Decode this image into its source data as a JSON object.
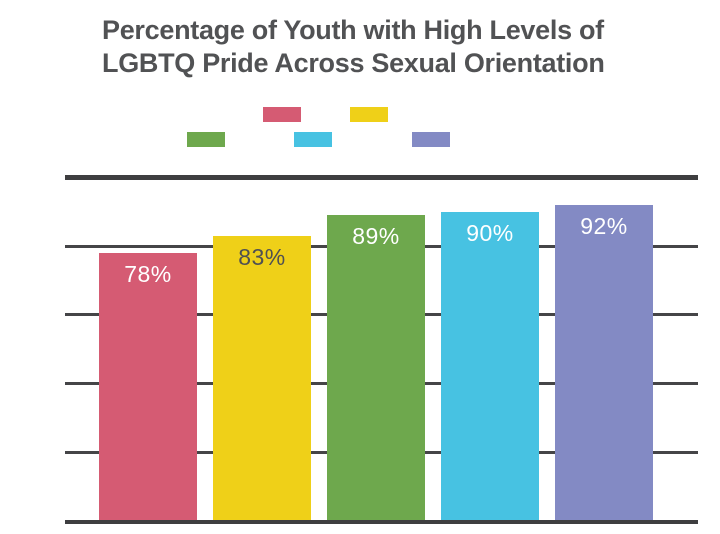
{
  "title": {
    "full": "Percentage of Youth with High Levels of LGBTQ Pride Across Sexual Orientation"
  },
  "chart_data": {
    "type": "bar",
    "title": "Percentage of Youth with High Levels of LGBTQ Pride Across Sexual Orientation",
    "title_lines": [
      "Percentage of Youth with High Levels of",
      "LGBTQ Pride Across Sexual Orientation"
    ],
    "values": [
      78,
      83,
      89,
      90,
      92
    ],
    "data_labels": [
      "78%",
      "83%",
      "89%",
      "90%",
      "92%"
    ],
    "bar_colors": [
      "#d55b73",
      "#efd018",
      "#6ea84d",
      "#47c2e2",
      "#838ac4"
    ],
    "data_label_colors": [
      "#ffffff",
      "#4f5053",
      "#ffffff",
      "#ffffff",
      "#ffffff"
    ],
    "ylim": [
      0,
      100
    ],
    "yticks": [
      0,
      20,
      40,
      60,
      80,
      100
    ],
    "ytick_labels_visible": false,
    "xtick_labels_visible": false,
    "grid": "horizontal",
    "legend": {
      "position": "top",
      "labels_visible": false,
      "swatch_colors": [
        "#d55b73",
        "#efd018",
        "#6ea84d",
        "#47c2e2",
        "#838ac4"
      ]
    },
    "colors": {
      "title_text": "#515254",
      "axis_line": "#3e3e40",
      "gridline": "#454547",
      "background": "#ffffff"
    }
  }
}
